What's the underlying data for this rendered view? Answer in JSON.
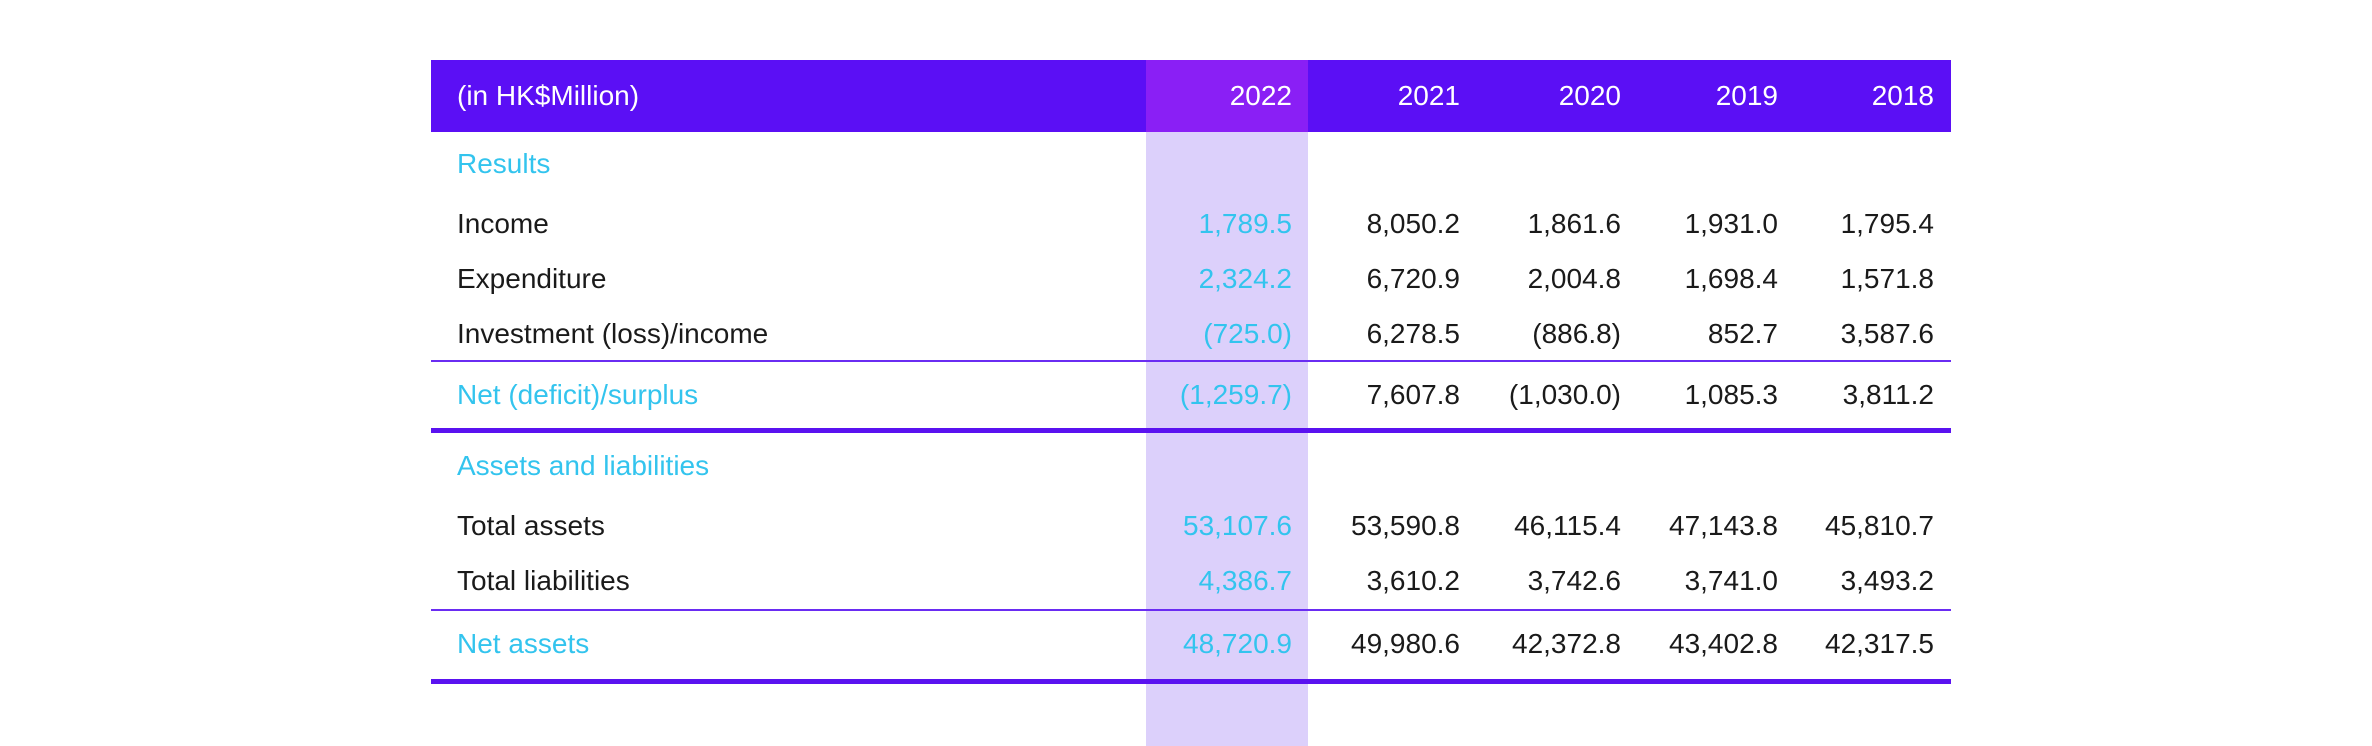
{
  "header": {
    "label": "(in HK$Million)",
    "years": [
      "2022",
      "2021",
      "2020",
      "2019",
      "2018"
    ]
  },
  "results": {
    "title": "Results",
    "rows": [
      {
        "label": "Income",
        "values": [
          "1,789.5",
          "8,050.2",
          "1,861.6",
          "1,931.0",
          "1,795.4"
        ]
      },
      {
        "label": "Expenditure",
        "values": [
          "2,324.2",
          "6,720.9",
          "2,004.8",
          "1,698.4",
          "1,571.8"
        ]
      },
      {
        "label": "Investment (loss)/income",
        "values": [
          "(725.0)",
          "6,278.5",
          "(886.8)",
          "852.7",
          "3,587.6"
        ]
      }
    ],
    "total": {
      "label": "Net (deficit)/surplus",
      "values": [
        "(1,259.7)",
        "7,607.8",
        "(1,030.0)",
        "1,085.3",
        "3,811.2"
      ]
    }
  },
  "assets": {
    "title": "Assets and liabilities",
    "rows": [
      {
        "label": "Total assets",
        "values": [
          "53,107.6",
          "53,590.8",
          "46,115.4",
          "47,143.8",
          "45,810.7"
        ]
      },
      {
        "label": "Total liabilities",
        "values": [
          "4,386.7",
          "3,610.2",
          "3,742.6",
          "3,741.0",
          "3,493.2"
        ]
      }
    ],
    "total": {
      "label": "Net assets",
      "values": [
        "48,720.9",
        "49,980.6",
        "42,372.8",
        "43,402.8",
        "42,317.5"
      ]
    }
  },
  "colors": {
    "header_bg": "#5b0ff5",
    "highlight_header_bg": "#8a1ff5",
    "highlight_column_bg": "#dcd0fb",
    "accent_text": "#33c4ee",
    "rule": "#5a12f0"
  }
}
